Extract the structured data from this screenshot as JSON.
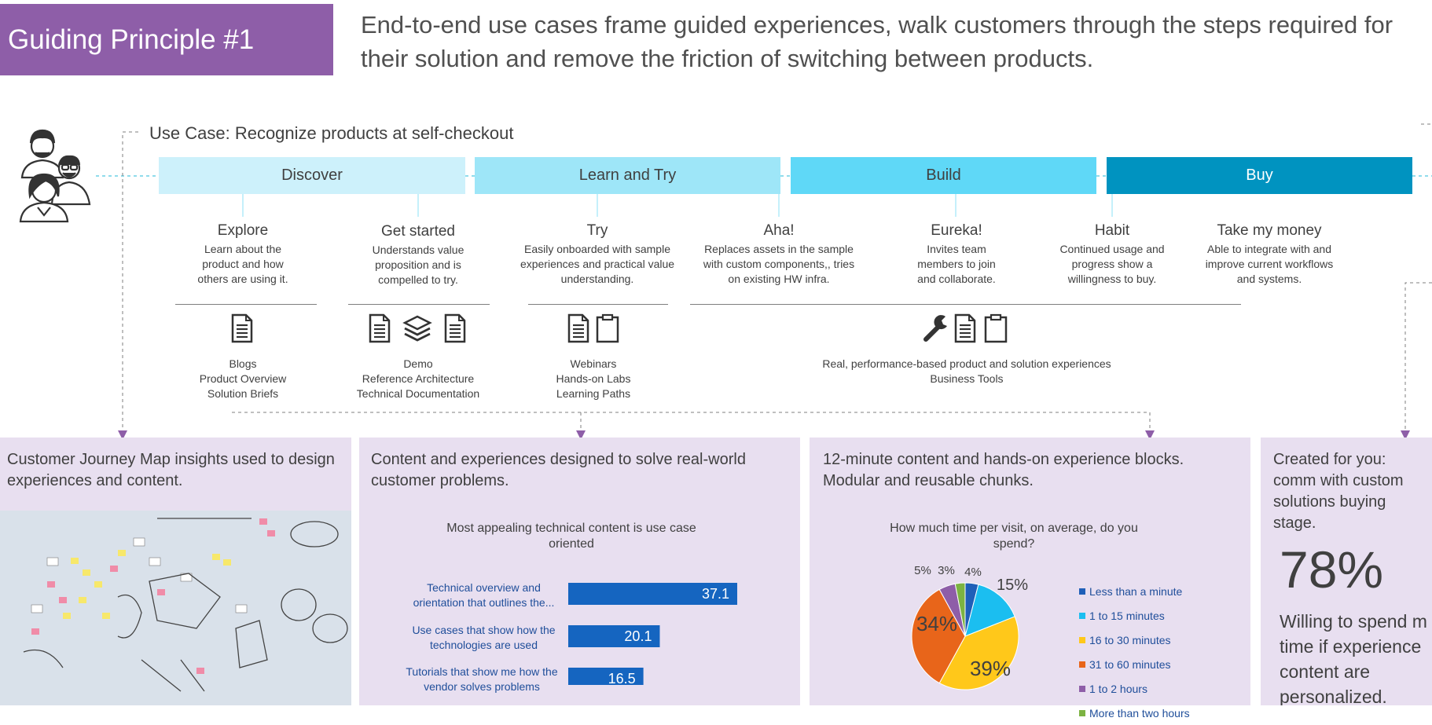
{
  "header": {
    "badge": "Guiding Principle #1",
    "headline": "End-to-end use cases frame guided experiences, walk customers through the steps required for their solution and remove the friction of switching between products."
  },
  "use_case": {
    "title": "Use Case: Recognize products at self-checkout"
  },
  "stages": [
    {
      "label": "Discover",
      "color": "#cdf1fb"
    },
    {
      "label": "Learn and Try",
      "color": "#9ee6f8"
    },
    {
      "label": "Build",
      "color": "#5fd8f7"
    },
    {
      "label": "Buy",
      "color": "#0093c0"
    }
  ],
  "steps": [
    {
      "title": "Explore",
      "desc": [
        "Learn about the",
        "product and how",
        "others are using it."
      ]
    },
    {
      "title": "Get started",
      "desc": [
        "Understands value",
        "proposition and is",
        "compelled to try."
      ]
    },
    {
      "title": "Try",
      "desc": [
        "Easily onboarded with sample",
        "experiences and practical value",
        "understanding."
      ]
    },
    {
      "title": "Aha!",
      "desc": [
        "Replaces assets in the sample",
        "with custom components,, tries",
        "on existing HW infra."
      ]
    },
    {
      "title": "Eureka!",
      "desc": [
        "Invites team",
        "members to join",
        "and collaborate."
      ]
    },
    {
      "title": "Habit",
      "desc": [
        "Continued usage and",
        "progress show a",
        "willingness to buy."
      ]
    },
    {
      "title": "Take my money",
      "desc": [
        "Able to integrate with and",
        "improve current workflows",
        "and systems."
      ]
    }
  ],
  "resources": [
    {
      "items": [
        "Blogs",
        "Product Overview",
        "Solution Briefs"
      ],
      "icons": [
        "document-icon"
      ]
    },
    {
      "items": [
        "Demo",
        "Reference Architecture",
        "Technical Documentation"
      ],
      "icons": [
        "document-icon",
        "layers-icon",
        "document-icon"
      ]
    },
    {
      "items": [
        "Webinars",
        "Hands-on Labs",
        "Learning Paths"
      ],
      "icons": [
        "document-icon",
        "clipboard-icon"
      ]
    },
    {
      "items": [
        "Real, performance-based product and solution experiences",
        "Business Tools"
      ],
      "icons": [
        "wrench-icon",
        "document-icon",
        "clipboard-icon"
      ]
    }
  ],
  "panels": [
    {
      "text": "Customer Journey Map insights used to design experiences and content."
    },
    {
      "text": "Content and experiences designed to solve real-world customer problems."
    },
    {
      "text": "12-minute content and hands-on experience blocks. Modular and reusable chunks."
    },
    {
      "text": "Created for you: comm with custom solutions buying stage."
    }
  ],
  "big_stat": {
    "value": "78%",
    "caption": "Willing to spend m time if experience content are personalized."
  },
  "chart_data": [
    {
      "type": "bar",
      "title": "Most appealing technical content is use case oriented",
      "categories": [
        "Technical overview and orientation that outlines the...",
        "Use cases that show how the technologies are used",
        "Tutorials that show me how the vendor solves problems"
      ],
      "values": [
        37.1,
        20.1,
        16.5
      ],
      "bar_color": "#1565c0"
    },
    {
      "type": "pie",
      "title": "How much time per visit, on average, do you spend?",
      "labels": [
        "Less than a minute",
        "1 to 15 minutes",
        "16 to 30 minutes",
        "31 to 60 minutes",
        "1 to 2 hours",
        "More than two hours"
      ],
      "values": [
        4,
        15,
        39,
        34,
        5,
        3
      ],
      "value_labels": [
        "4%",
        "15%",
        "39%",
        "34%",
        "5%",
        "3%"
      ],
      "colors": [
        "#1f5fb8",
        "#1bbef0",
        "#ffc81a",
        "#e8651a",
        "#8e5ea8",
        "#7cb342"
      ]
    }
  ]
}
